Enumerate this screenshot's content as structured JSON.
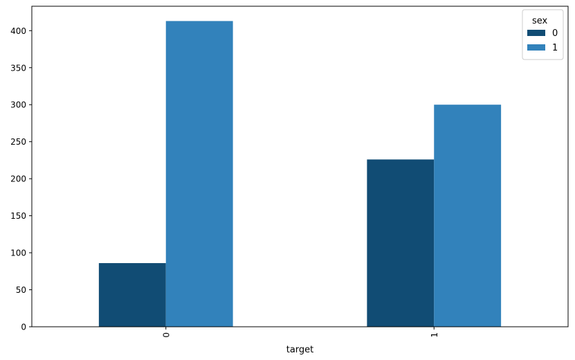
{
  "chart_data": {
    "type": "bar",
    "categories": [
      "0",
      "1"
    ],
    "xlabel": "target",
    "ylabel": "",
    "ylim": [
      0,
      433
    ],
    "yticks": [
      0,
      50,
      100,
      150,
      200,
      250,
      300,
      350,
      400
    ],
    "grid": false,
    "legend": {
      "title": "sex",
      "placement": "top-right"
    },
    "series": [
      {
        "name": "0",
        "color": "#114c74",
        "values": [
          86,
          226
        ]
      },
      {
        "name": "1",
        "color": "#3282bb",
        "values": [
          413,
          300
        ]
      }
    ]
  }
}
